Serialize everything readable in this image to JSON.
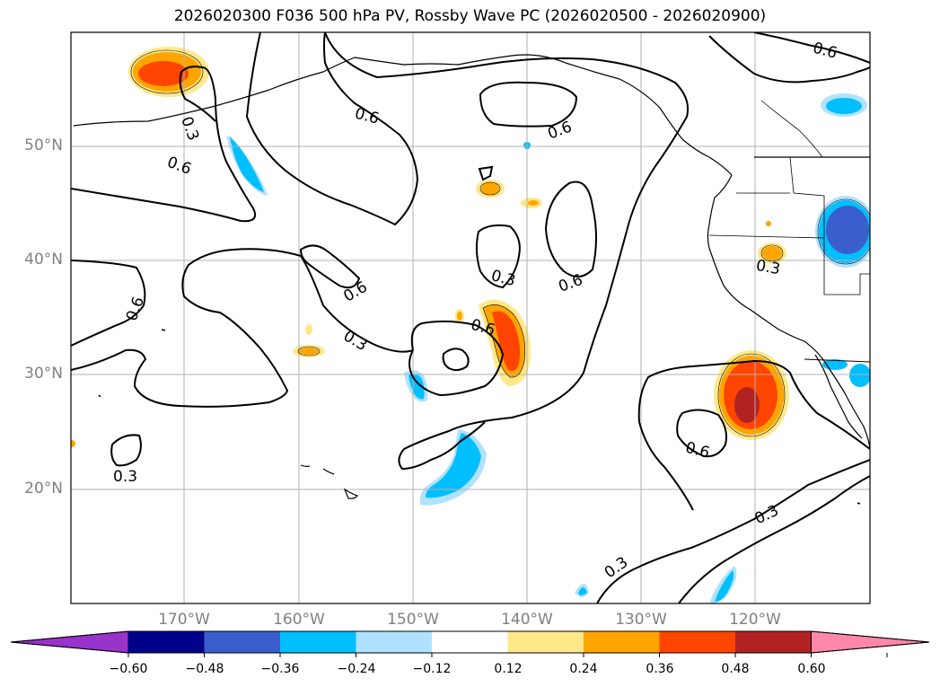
{
  "title": "2026020300 F036 500 hPa PV, Rossby Wave PC (2026020500 - 2026020900)",
  "map": {
    "extent": {
      "lon_min": -180,
      "lon_max": -110,
      "lat_min": 10,
      "lat_max": 60
    },
    "lat_labels": [
      "20°N",
      "30°N",
      "40°N",
      "50°N"
    ],
    "lon_labels": [
      "170°W",
      "160°W",
      "150°W",
      "140°W",
      "130°W",
      "120°W"
    ],
    "grid": true,
    "contour_labels": [
      "0.6",
      "0.3",
      "0.6",
      "0.6",
      "0.6",
      "0.3",
      "0.6",
      "0.6",
      "0.6",
      "0.3",
      "0.6",
      "0.3",
      "0.6",
      "0.3",
      "0.3",
      "0.3",
      "0.3",
      "0.6"
    ]
  },
  "colorbar": {
    "ticks": [
      "−0.60",
      "−0.48",
      "−0.36",
      "−0.24",
      "−0.12",
      "0.12",
      "0.24",
      "0.36",
      "0.48",
      "0.60"
    ],
    "colors": [
      "#9933cc",
      "#00008b",
      "#3a5fcd",
      "#00bfff",
      "#b0e2ff",
      "#ffffff",
      "#ffe88a",
      "#ffa500",
      "#ff4500",
      "#b22222",
      "#ff88aa"
    ]
  }
}
